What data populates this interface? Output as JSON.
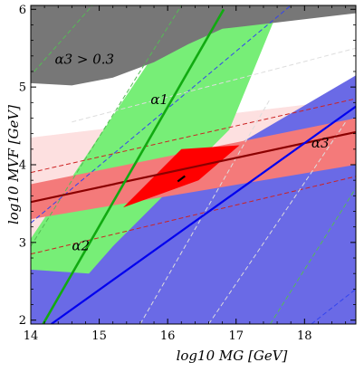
{
  "chart_data": {
    "type": "area",
    "title": "",
    "xlabel": "log10 MG [GeV]",
    "ylabel": "log10 MVF [GeV]",
    "xlim": [
      14,
      18.75
    ],
    "ylim": [
      1.95,
      6.05
    ],
    "grid": false,
    "xticks": [
      "14",
      "15",
      "16",
      "17",
      "18"
    ],
    "yticks": [
      "2",
      "3",
      "4",
      "5",
      "6"
    ],
    "regions": [
      {
        "name": "pink",
        "color": "#fde0e0",
        "points": [
          [
            14,
            2.0
          ],
          [
            18.75,
            2.0
          ],
          [
            18.75,
            4.85
          ],
          [
            14,
            4.35
          ]
        ]
      },
      {
        "name": "alpha2-blue",
        "color": "#6a6ae6",
        "points": [
          [
            14,
            1.95
          ],
          [
            18.75,
            1.95
          ],
          [
            18.75,
            5.15
          ],
          [
            14,
            2.7
          ]
        ]
      },
      {
        "name": "alpha1-green",
        "color": "#77ee77",
        "points": [
          [
            14,
            2.65
          ],
          [
            14,
            3.05
          ],
          [
            15.9,
            5.55
          ],
          [
            16.2,
            5.78
          ],
          [
            17.55,
            5.85
          ],
          [
            16.9,
            4.45
          ],
          [
            15.2,
            2.95
          ],
          [
            14.85,
            2.6
          ]
        ]
      },
      {
        "name": "alpha3-light-red",
        "color": "#f47a7a",
        "points": [
          [
            14,
            3.75
          ],
          [
            18.75,
            4.6
          ],
          [
            18.75,
            4.0
          ],
          [
            14,
            3.3
          ]
        ]
      },
      {
        "name": "alpha3-dark-red",
        "color": "#ff0000",
        "points": [
          [
            15.35,
            3.45
          ],
          [
            16.2,
            4.2
          ],
          [
            17.05,
            4.25
          ],
          [
            16.45,
            3.8
          ]
        ]
      },
      {
        "name": "alpha3-exclusion-gray",
        "color": "#777777",
        "points": [
          [
            14,
            6.05
          ],
          [
            18.75,
            6.05
          ],
          [
            18.75,
            5.95
          ],
          [
            17.1,
            5.78
          ],
          [
            16.8,
            5.75
          ],
          [
            16.3,
            5.55
          ],
          [
            15.8,
            5.32
          ],
          [
            15.2,
            5.12
          ],
          [
            14.6,
            5.02
          ],
          [
            14,
            5.05
          ]
        ]
      }
    ],
    "lines": [
      {
        "name": "alpha3-central",
        "color": "#8b0000",
        "width": 2.2,
        "points": [
          [
            14,
            3.52
          ],
          [
            18.75,
            4.42
          ]
        ]
      },
      {
        "name": "alpha2-central",
        "color": "#0000ee",
        "width": 2.2,
        "points": [
          [
            14.3,
            1.95
          ],
          [
            18.75,
            4.75
          ]
        ]
      },
      {
        "name": "alpha1-central",
        "color": "#11aa11",
        "width": 2.6,
        "points": [
          [
            14.18,
            1.95
          ],
          [
            16.82,
            6.0
          ]
        ]
      }
    ],
    "dashed_lines": [
      {
        "color": "#55bb55",
        "points": [
          [
            14.05,
            5.2
          ],
          [
            14.9,
            6.05
          ]
        ]
      },
      {
        "color": "#55bb55",
        "points": [
          [
            14.0,
            2.95
          ],
          [
            16.2,
            6.05
          ]
        ]
      },
      {
        "color": "#55bb55",
        "points": [
          [
            17.5,
            1.95
          ],
          [
            18.75,
            3.7
          ]
        ]
      },
      {
        "color": "#3344ee",
        "points": [
          [
            14.0,
            3.25
          ],
          [
            17.8,
            6.05
          ]
        ]
      },
      {
        "color": "#3344ee",
        "points": [
          [
            18.1,
            1.95
          ],
          [
            18.75,
            2.4
          ]
        ]
      },
      {
        "color": "#cc2222",
        "points": [
          [
            14.0,
            3.9
          ],
          [
            18.75,
            4.85
          ]
        ]
      },
      {
        "color": "#cc2222",
        "points": [
          [
            14.0,
            2.85
          ],
          [
            18.75,
            3.85
          ]
        ]
      },
      {
        "color": "#dddddd",
        "points": [
          [
            14.6,
            4.55
          ],
          [
            18.75,
            5.5
          ]
        ]
      },
      {
        "color": "#dddddd",
        "points": [
          [
            15.6,
            1.95
          ],
          [
            17.5,
            4.85
          ]
        ]
      },
      {
        "color": "#dddddd",
        "points": [
          [
            16.6,
            1.95
          ],
          [
            18.6,
            4.55
          ]
        ]
      }
    ],
    "marker": {
      "x": 16.2,
      "y": 3.82,
      "color": "#000000"
    },
    "annotations": [
      {
        "text": "α3 > 0.3",
        "x": 14.35,
        "y": 5.3
      },
      {
        "text": "α1",
        "x": 15.75,
        "y": 4.78
      },
      {
        "text": "α2",
        "x": 14.6,
        "y": 2.9
      },
      {
        "text": "α3",
        "x": 18.1,
        "y": 4.22
      }
    ]
  }
}
